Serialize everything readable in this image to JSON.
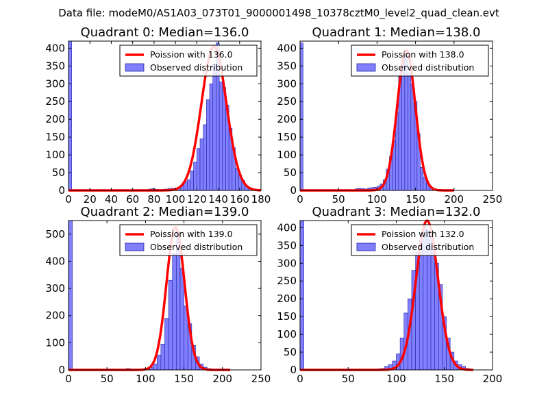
{
  "suptitle": "Data file: modeM0/AS1A03_073T01_9000001498_10378cztM0_level2_quad_clean.evt",
  "colors": {
    "hist_fill": "#8080ff",
    "hist_edge": "#2020a0",
    "curve": "#ff0000",
    "frame": "#000000"
  },
  "chart_data": [
    {
      "type": "bar",
      "title": "Quadrant 0: Median=136.0",
      "xlim": [
        0,
        180
      ],
      "ylim": [
        0,
        420
      ],
      "xticks": [
        0,
        20,
        40,
        60,
        80,
        100,
        120,
        140,
        160,
        180
      ],
      "yticks": [
        0,
        50,
        100,
        150,
        200,
        250,
        300,
        350,
        400
      ],
      "legend": {
        "line_label": "Poission with 136.0",
        "hist_label": "Observed distribution",
        "position": "upper-right"
      },
      "bin_width": 3,
      "bins": [
        {
          "x": 0,
          "y": 420
        },
        {
          "x": 75,
          "y": 4
        },
        {
          "x": 78,
          "y": 5
        },
        {
          "x": 81,
          "y": 3
        },
        {
          "x": 84,
          "y": 2
        },
        {
          "x": 87,
          "y": 3
        },
        {
          "x": 90,
          "y": 4
        },
        {
          "x": 93,
          "y": 5
        },
        {
          "x": 96,
          "y": 6
        },
        {
          "x": 99,
          "y": 6
        },
        {
          "x": 102,
          "y": 8
        },
        {
          "x": 105,
          "y": 14
        },
        {
          "x": 108,
          "y": 25
        },
        {
          "x": 111,
          "y": 30
        },
        {
          "x": 114,
          "y": 55
        },
        {
          "x": 117,
          "y": 80
        },
        {
          "x": 120,
          "y": 118
        },
        {
          "x": 123,
          "y": 145
        },
        {
          "x": 126,
          "y": 185
        },
        {
          "x": 129,
          "y": 255
        },
        {
          "x": 132,
          "y": 300
        },
        {
          "x": 135,
          "y": 355
        },
        {
          "x": 138,
          "y": 415
        },
        {
          "x": 141,
          "y": 305
        },
        {
          "x": 144,
          "y": 290
        },
        {
          "x": 147,
          "y": 240
        },
        {
          "x": 150,
          "y": 175
        },
        {
          "x": 153,
          "y": 120
        },
        {
          "x": 156,
          "y": 62
        },
        {
          "x": 159,
          "y": 42
        },
        {
          "x": 162,
          "y": 28
        },
        {
          "x": 165,
          "y": 12
        },
        {
          "x": 168,
          "y": 8
        }
      ],
      "curve": {
        "mean": 136,
        "peak": 405,
        "x_range": [
          0,
          180
        ]
      }
    },
    {
      "type": "bar",
      "title": "Quadrant 1: Median=138.0",
      "xlim": [
        0,
        250
      ],
      "ylim": [
        0,
        420
      ],
      "xticks": [
        0,
        50,
        100,
        150,
        200,
        250
      ],
      "yticks": [
        0,
        50,
        100,
        150,
        200,
        250,
        300,
        350,
        400
      ],
      "legend": {
        "line_label": "Poission with 138.0",
        "hist_label": "Observed distribution",
        "position": "upper-right"
      },
      "bin_width": 4,
      "bins": [
        {
          "x": 0,
          "y": 415
        },
        {
          "x": 72,
          "y": 5
        },
        {
          "x": 76,
          "y": 6
        },
        {
          "x": 80,
          "y": 5
        },
        {
          "x": 84,
          "y": 4
        },
        {
          "x": 88,
          "y": 7
        },
        {
          "x": 92,
          "y": 8
        },
        {
          "x": 96,
          "y": 9
        },
        {
          "x": 100,
          "y": 12
        },
        {
          "x": 104,
          "y": 18
        },
        {
          "x": 108,
          "y": 30
        },
        {
          "x": 112,
          "y": 60
        },
        {
          "x": 116,
          "y": 95
        },
        {
          "x": 120,
          "y": 140
        },
        {
          "x": 124,
          "y": 220
        },
        {
          "x": 128,
          "y": 320
        },
        {
          "x": 132,
          "y": 370
        },
        {
          "x": 136,
          "y": 390
        },
        {
          "x": 140,
          "y": 330
        },
        {
          "x": 144,
          "y": 300
        },
        {
          "x": 148,
          "y": 250
        },
        {
          "x": 152,
          "y": 160
        },
        {
          "x": 156,
          "y": 65
        },
        {
          "x": 160,
          "y": 38
        },
        {
          "x": 164,
          "y": 20
        },
        {
          "x": 168,
          "y": 8
        },
        {
          "x": 172,
          "y": 3
        }
      ],
      "curve": {
        "mean": 138,
        "peak": 395,
        "x_range": [
          0,
          200
        ]
      }
    },
    {
      "type": "bar",
      "title": "Quadrant 2: Median=139.0",
      "xlim": [
        0,
        250
      ],
      "ylim": [
        0,
        550
      ],
      "xticks": [
        0,
        50,
        100,
        150,
        200,
        250
      ],
      "yticks": [
        0,
        100,
        200,
        300,
        400,
        500
      ],
      "legend": {
        "line_label": "Poission with 139.0",
        "hist_label": "Observed distribution",
        "position": "upper-right"
      },
      "bin_width": 5,
      "bins": [
        {
          "x": 0,
          "y": 550
        },
        {
          "x": 75,
          "y": 5
        },
        {
          "x": 80,
          "y": 3
        },
        {
          "x": 85,
          "y": 2
        },
        {
          "x": 90,
          "y": 3
        },
        {
          "x": 95,
          "y": 4
        },
        {
          "x": 100,
          "y": 5
        },
        {
          "x": 105,
          "y": 10
        },
        {
          "x": 110,
          "y": 22
        },
        {
          "x": 115,
          "y": 55
        },
        {
          "x": 120,
          "y": 95
        },
        {
          "x": 125,
          "y": 190
        },
        {
          "x": 130,
          "y": 330
        },
        {
          "x": 135,
          "y": 430
        },
        {
          "x": 140,
          "y": 510
        },
        {
          "x": 145,
          "y": 375
        },
        {
          "x": 150,
          "y": 235
        },
        {
          "x": 155,
          "y": 170
        },
        {
          "x": 160,
          "y": 90
        },
        {
          "x": 165,
          "y": 48
        },
        {
          "x": 170,
          "y": 22
        },
        {
          "x": 175,
          "y": 10
        },
        {
          "x": 180,
          "y": 5
        }
      ],
      "curve": {
        "mean": 139,
        "peak": 525,
        "x_range": [
          0,
          210
        ]
      }
    },
    {
      "type": "bar",
      "title": "Quadrant 3: Median=132.0",
      "xlim": [
        0,
        200
      ],
      "ylim": [
        0,
        420
      ],
      "xticks": [
        0,
        50,
        100,
        150,
        200
      ],
      "yticks": [
        0,
        50,
        100,
        150,
        200,
        250,
        300,
        350,
        400
      ],
      "legend": {
        "line_label": "Poission with 132.0",
        "hist_label": "Observed distribution",
        "position": "upper-right"
      },
      "bin_width": 4,
      "bins": [
        {
          "x": 0,
          "y": 420
        },
        {
          "x": 80,
          "y": 3
        },
        {
          "x": 84,
          "y": 4
        },
        {
          "x": 88,
          "y": 10
        },
        {
          "x": 92,
          "y": 15
        },
        {
          "x": 96,
          "y": 25
        },
        {
          "x": 100,
          "y": 45
        },
        {
          "x": 104,
          "y": 90
        },
        {
          "x": 108,
          "y": 160
        },
        {
          "x": 112,
          "y": 200
        },
        {
          "x": 116,
          "y": 280
        },
        {
          "x": 120,
          "y": 330
        },
        {
          "x": 124,
          "y": 365
        },
        {
          "x": 128,
          "y": 405
        },
        {
          "x": 132,
          "y": 390
        },
        {
          "x": 136,
          "y": 360
        },
        {
          "x": 140,
          "y": 300
        },
        {
          "x": 144,
          "y": 240
        },
        {
          "x": 148,
          "y": 150
        },
        {
          "x": 152,
          "y": 90
        },
        {
          "x": 156,
          "y": 50
        },
        {
          "x": 160,
          "y": 25
        },
        {
          "x": 164,
          "y": 15
        },
        {
          "x": 168,
          "y": 10
        },
        {
          "x": 172,
          "y": 4
        }
      ],
      "curve": {
        "mean": 132,
        "peak": 420,
        "x_range": [
          0,
          180
        ]
      }
    }
  ]
}
